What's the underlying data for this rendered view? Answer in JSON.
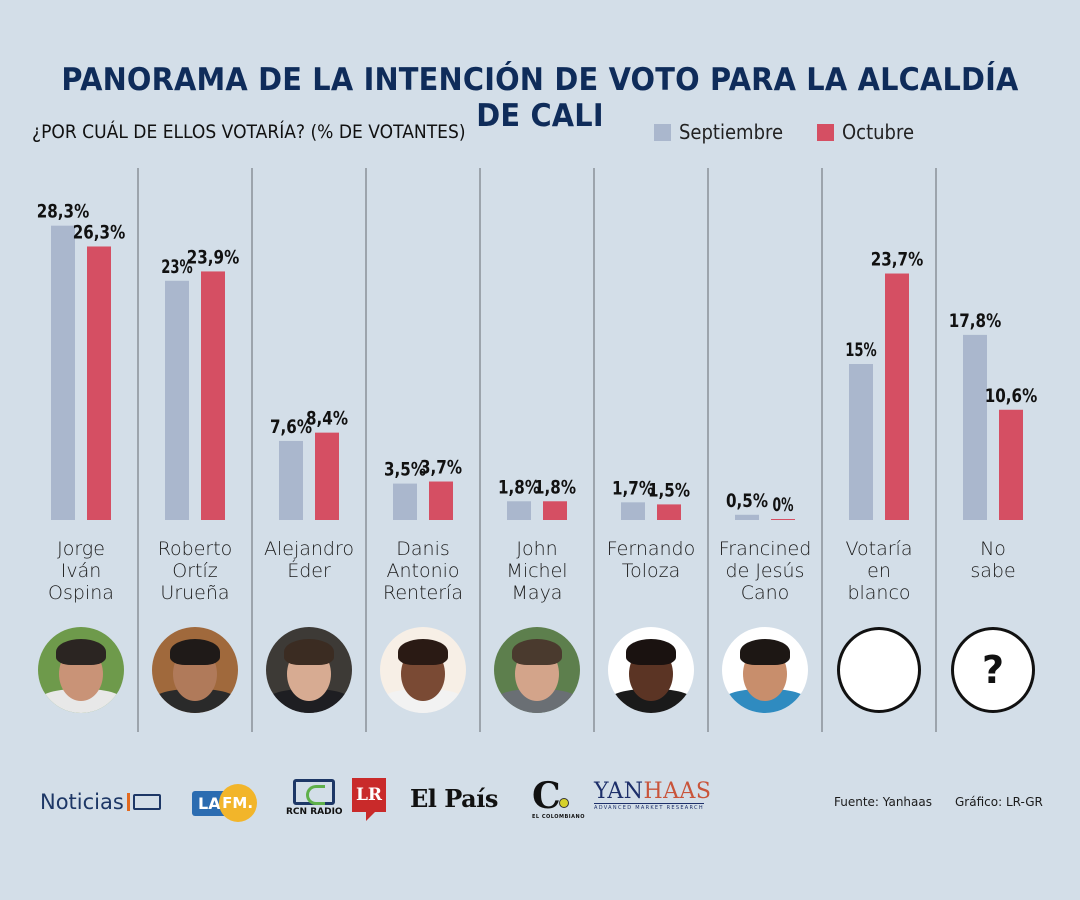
{
  "header": {
    "title": "PANORAMA DE LA INTENCIÓN DE VOTO PARA LA ALCALDÍA DE CALI",
    "subtitle": "¿POR CUÁL DE ELLOS VOTARÍA?  (% DE VOTANTES)"
  },
  "legend": {
    "items": [
      {
        "label": "Septiembre",
        "color": "#aab7cd"
      },
      {
        "label": "Octubre",
        "color": "#d54f63"
      }
    ]
  },
  "chart_data": {
    "type": "bar",
    "title": "PANORAMA DE LA INTENCIÓN DE VOTO PARA LA ALCALDÍA DE CALI",
    "subtitle": "¿POR CUÁL DE ELLOS VOTARÍA?  (% DE VOTANTES)",
    "xlabel": "",
    "ylabel": "% de votantes",
    "ylim": [
      0,
      30
    ],
    "grid": false,
    "legend_position": "top-right",
    "categories": [
      "Jorge Iván Ospina",
      "Roberto Ortíz Urueña",
      "Alejandro Éder",
      "Danis Antonio Rentería",
      "John Michel Maya",
      "Fernando Toloza",
      "Francined de Jesús Cano",
      "Votaría en blanco",
      "No sabe"
    ],
    "category_lines": [
      [
        "Jorge",
        "Iván",
        "Ospina"
      ],
      [
        "Roberto",
        "Ortíz",
        "Urueña"
      ],
      [
        "Alejandro",
        "Éder"
      ],
      [
        "Danis",
        "Antonio",
        "Rentería"
      ],
      [
        "John",
        "Michel",
        "Maya"
      ],
      [
        "Fernando",
        "Toloza"
      ],
      [
        "Francined",
        "de Jesús",
        "Cano"
      ],
      [
        "Votaría",
        "en",
        "blanco"
      ],
      [
        "No",
        "sabe"
      ]
    ],
    "series": [
      {
        "name": "Septiembre",
        "color": "#aab7cd",
        "values": [
          28.3,
          23,
          7.6,
          3.5,
          1.8,
          1.7,
          0.5,
          15,
          17.8
        ],
        "labels": [
          "28,3%",
          "23%",
          "7,6%",
          "3,5%",
          "1,8%",
          "1,7%",
          "0,5%",
          "15%",
          "17,8%"
        ]
      },
      {
        "name": "Octubre",
        "color": "#d54f63",
        "values": [
          26.3,
          23.9,
          8.4,
          3.7,
          1.8,
          1.5,
          0,
          23.7,
          10.6
        ],
        "labels": [
          "26,3%",
          "23,9%",
          "8,4%",
          "3,7%",
          "1,8%",
          "1,5%",
          "0%",
          "23,7%",
          "10,6%"
        ]
      }
    ]
  },
  "avatars": [
    {
      "kind": "photo",
      "icon": "candidate-photo",
      "skin": "#c99377",
      "hair": "#2b2522",
      "bg": "#6e9a4b",
      "shirt": "#e8e8e8"
    },
    {
      "kind": "photo",
      "icon": "candidate-photo",
      "skin": "#b07a5a",
      "hair": "#1f1a18",
      "bg": "#a0693c",
      "shirt": "#2a2a2a"
    },
    {
      "kind": "photo",
      "icon": "candidate-photo",
      "skin": "#d7ab92",
      "hair": "#3b2c22",
      "bg": "#3d3a36",
      "shirt": "#1e1e22"
    },
    {
      "kind": "photo",
      "icon": "candidate-photo",
      "skin": "#7a4a34",
      "hair": "#2a1a14",
      "bg": "#f7efe6",
      "shirt": "#f2f2f2"
    },
    {
      "kind": "photo",
      "icon": "candidate-photo",
      "skin": "#d3a48a",
      "hair": "#4a3a2e",
      "bg": "#5d7f4d",
      "shirt": "#6a6f74"
    },
    {
      "kind": "photo",
      "icon": "candidate-photo",
      "skin": "#5b3424",
      "hair": "#1a1210",
      "bg": "#ffffff",
      "shirt": "#1a1a1a"
    },
    {
      "kind": "photo",
      "icon": "candidate-photo",
      "skin": "#c88e6c",
      "hair": "#1d1714",
      "bg": "#ffffff",
      "shirt": "#2f8bc0"
    },
    {
      "kind": "outline",
      "icon": "blank-circle",
      "glyph": ""
    },
    {
      "kind": "outline",
      "icon": "question-mark",
      "glyph": "?"
    }
  ],
  "logos": {
    "noticias": "Noticias",
    "la": "LA",
    "fm": "FM.",
    "rcn_radio": "RCN RADIO",
    "lr": "LR",
    "el_pais": "El País",
    "colombiano_c": "C",
    "colombiano_sub": "EL COLOMBIANO",
    "yanhaas_a": "YAN",
    "yanhaas_b": "HAAS",
    "yanhaas_sub": "ADVANCED MARKET RESEARCH"
  },
  "footer": {
    "source": "Fuente:  Yanhaas",
    "credit": "Gráfico: LR-GR"
  }
}
